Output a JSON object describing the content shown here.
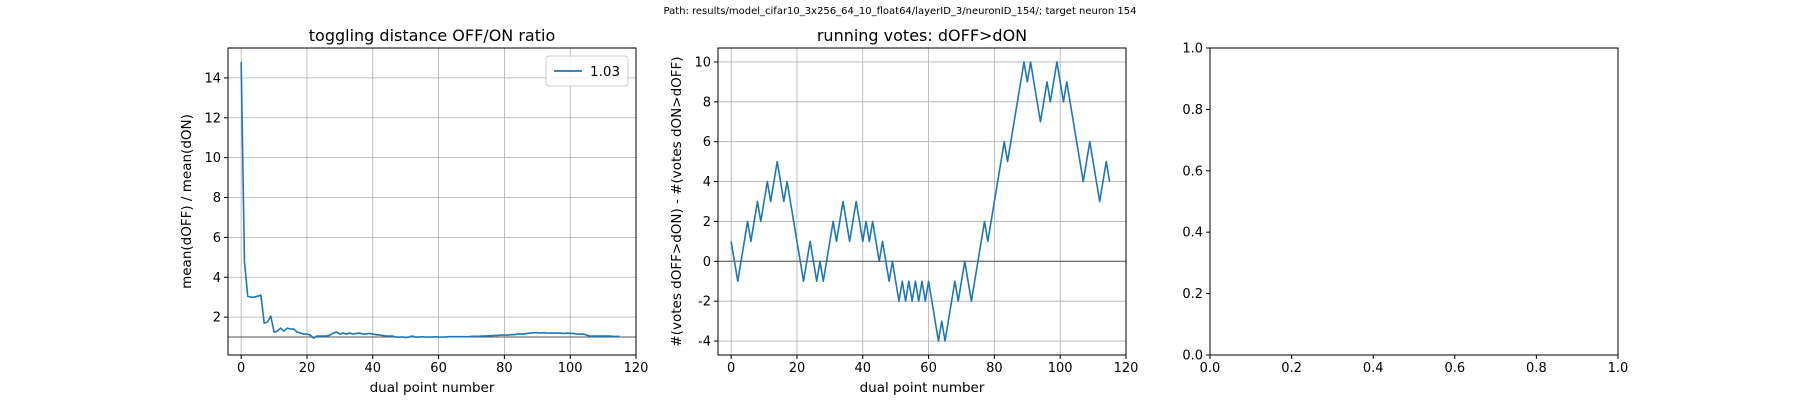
{
  "suptitle": "Path: results/model_cifar10_3x256_64_10_float64/layerID_3/neuronID_154/; target neuron 154",
  "chart_data": [
    {
      "type": "line",
      "title": "toggling distance OFF/ON ratio",
      "xlabel": "dual point number",
      "ylabel": "mean(dOFF) / mean(dON)",
      "xlim": [
        -4,
        120
      ],
      "ylim": [
        0.1,
        15.5
      ],
      "xticks": [
        0,
        20,
        40,
        60,
        80,
        100,
        120
      ],
      "yticks": [
        2,
        4,
        6,
        8,
        10,
        12,
        14
      ],
      "grid": true,
      "legend": "top-right",
      "hline": 1.0,
      "series": [
        {
          "name": "1.03",
          "color": "#1f77b4",
          "x": [
            0,
            1,
            2,
            3,
            4,
            5,
            6,
            7,
            8,
            9,
            10,
            11,
            12,
            13,
            14,
            15,
            16,
            17,
            18,
            19,
            20,
            21,
            22,
            23,
            24,
            25,
            26,
            27,
            28,
            29,
            30,
            31,
            32,
            33,
            34,
            35,
            36,
            37,
            38,
            39,
            40,
            41,
            42,
            43,
            44,
            45,
            46,
            47,
            48,
            49,
            50,
            51,
            52,
            53,
            54,
            55,
            56,
            57,
            58,
            59,
            60,
            61,
            62,
            63,
            64,
            65,
            66,
            67,
            68,
            69,
            70,
            71,
            72,
            73,
            74,
            75,
            76,
            77,
            78,
            79,
            80,
            81,
            82,
            83,
            84,
            85,
            86,
            87,
            88,
            89,
            90,
            91,
            92,
            93,
            94,
            95,
            96,
            97,
            98,
            99,
            100,
            101,
            102,
            103,
            104,
            105,
            106,
            107,
            108,
            109,
            110,
            111,
            112,
            113,
            114,
            115
          ],
          "values": [
            14.8,
            4.8,
            3.05,
            3.0,
            3.0,
            3.05,
            3.1,
            1.7,
            1.75,
            2.05,
            1.25,
            1.3,
            1.45,
            1.3,
            1.45,
            1.4,
            1.4,
            1.25,
            1.2,
            1.15,
            1.15,
            1.1,
            0.95,
            1.05,
            1.05,
            1.05,
            1.05,
            1.1,
            1.2,
            1.25,
            1.15,
            1.2,
            1.15,
            1.2,
            1.15,
            1.18,
            1.2,
            1.15,
            1.15,
            1.18,
            1.15,
            1.12,
            1.1,
            1.08,
            1.05,
            1.05,
            1.05,
            1.0,
            1.0,
            1.0,
            0.98,
            1.0,
            1.05,
            1.0,
            1.0,
            1.02,
            1.0,
            1.0,
            1.0,
            1.02,
            1.0,
            1.0,
            1.0,
            1.02,
            1.02,
            1.02,
            1.02,
            1.02,
            1.02,
            1.02,
            1.04,
            1.04,
            1.04,
            1.05,
            1.05,
            1.06,
            1.07,
            1.08,
            1.08,
            1.1,
            1.1,
            1.1,
            1.12,
            1.12,
            1.15,
            1.15,
            1.15,
            1.18,
            1.2,
            1.22,
            1.22,
            1.2,
            1.22,
            1.2,
            1.2,
            1.2,
            1.2,
            1.2,
            1.18,
            1.2,
            1.18,
            1.18,
            1.15,
            1.15,
            1.15,
            1.1,
            1.05,
            1.05,
            1.05,
            1.05,
            1.05,
            1.05,
            1.05,
            1.03,
            1.03,
            1.03
          ]
        }
      ]
    },
    {
      "type": "line",
      "title": "running votes: dOFF>dON",
      "xlabel": "dual point number",
      "ylabel": "#(votes dOFF>dON) - #(votes dON>dOFF)",
      "xlim": [
        -4,
        120
      ],
      "ylim": [
        -4.7,
        10.7
      ],
      "xticks": [
        0,
        20,
        40,
        60,
        80,
        100,
        120
      ],
      "yticks": [
        -4,
        -2,
        0,
        2,
        4,
        6,
        8,
        10
      ],
      "grid": true,
      "hline": 0,
      "series": [
        {
          "color": "#1f77b4",
          "x": [
            0,
            1,
            2,
            3,
            4,
            5,
            6,
            7,
            8,
            9,
            10,
            11,
            12,
            13,
            14,
            15,
            16,
            17,
            18,
            19,
            20,
            21,
            22,
            23,
            24,
            25,
            26,
            27,
            28,
            29,
            30,
            31,
            32,
            33,
            34,
            35,
            36,
            37,
            38,
            39,
            40,
            41,
            42,
            43,
            44,
            45,
            46,
            47,
            48,
            49,
            50,
            51,
            52,
            53,
            54,
            55,
            56,
            57,
            58,
            59,
            60,
            61,
            62,
            63,
            64,
            65,
            66,
            67,
            68,
            69,
            70,
            71,
            72,
            73,
            74,
            75,
            76,
            77,
            78,
            79,
            80,
            81,
            82,
            83,
            84,
            85,
            86,
            87,
            88,
            89,
            90,
            91,
            92,
            93,
            94,
            95,
            96,
            97,
            98,
            99,
            100,
            101,
            102,
            103,
            104,
            105,
            106,
            107,
            108,
            109,
            110,
            111,
            112,
            113,
            114,
            115
          ],
          "values": [
            1,
            0,
            -1,
            0,
            1,
            2,
            1,
            2,
            3,
            2,
            3,
            4,
            3,
            4,
            5,
            4,
            3,
            4,
            3,
            2,
            1,
            0,
            -1,
            0,
            1,
            0,
            -1,
            0,
            -1,
            0,
            1,
            2,
            1,
            2,
            3,
            2,
            1,
            2,
            3,
            2,
            1,
            2,
            1,
            2,
            1,
            0,
            1,
            0,
            -1,
            0,
            -1,
            -2,
            -1,
            -2,
            -1,
            -2,
            -1,
            -2,
            -1,
            -2,
            -1,
            -2,
            -3,
            -4,
            -3,
            -4,
            -3,
            -2,
            -1,
            -2,
            -1,
            0,
            -1,
            -2,
            -1,
            0,
            1,
            2,
            1,
            2,
            3,
            4,
            5,
            6,
            5,
            6,
            7,
            8,
            9,
            10,
            9,
            10,
            9,
            8,
            7,
            8,
            9,
            8,
            9,
            10,
            9,
            8,
            9,
            8,
            7,
            6,
            5,
            4,
            5,
            6,
            5,
            4,
            3,
            4,
            5,
            4
          ]
        }
      ]
    },
    {
      "type": "line",
      "title": "",
      "xlim": [
        0,
        1
      ],
      "ylim": [
        0,
        1
      ],
      "xticks": [
        0.0,
        0.2,
        0.4,
        0.6,
        0.8,
        1.0
      ],
      "yticks": [
        0.0,
        0.2,
        0.4,
        0.6,
        0.8,
        1.0
      ],
      "grid": false,
      "series": []
    }
  ]
}
